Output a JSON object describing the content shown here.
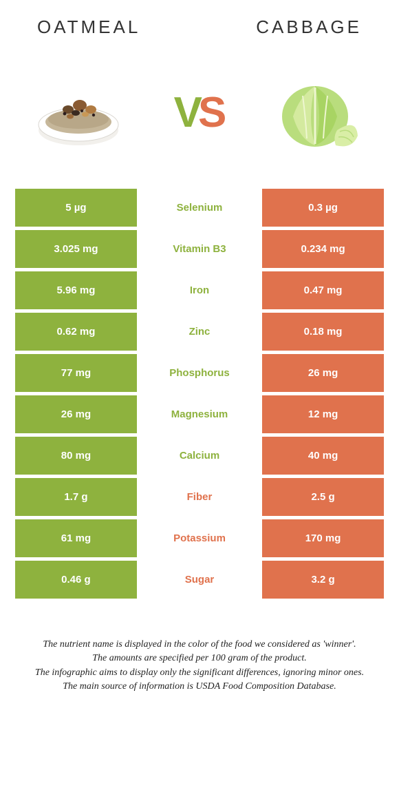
{
  "colors": {
    "left_col": "#8eb23e",
    "right_col": "#e0724d",
    "vs_v": "#8eb23e",
    "vs_s": "#e0724d",
    "title_text": "#333333"
  },
  "food_left": {
    "title": "OATMEAL"
  },
  "food_right": {
    "title": "CABBAGE"
  },
  "vs": {
    "v": "V",
    "s": "S"
  },
  "rows": [
    {
      "left": "5 µg",
      "label": "Selenium",
      "right": "0.3 µg",
      "winner": "left"
    },
    {
      "left": "3.025 mg",
      "label": "Vitamin B3",
      "right": "0.234 mg",
      "winner": "left"
    },
    {
      "left": "5.96 mg",
      "label": "Iron",
      "right": "0.47 mg",
      "winner": "left"
    },
    {
      "left": "0.62 mg",
      "label": "Zinc",
      "right": "0.18 mg",
      "winner": "left"
    },
    {
      "left": "77 mg",
      "label": "Phosphorus",
      "right": "26 mg",
      "winner": "left"
    },
    {
      "left": "26 mg",
      "label": "Magnesium",
      "right": "12 mg",
      "winner": "left"
    },
    {
      "left": "80 mg",
      "label": "Calcium",
      "right": "40 mg",
      "winner": "left"
    },
    {
      "left": "1.7 g",
      "label": "Fiber",
      "right": "2.5 g",
      "winner": "right"
    },
    {
      "left": "61 mg",
      "label": "Potassium",
      "right": "170 mg",
      "winner": "right"
    },
    {
      "left": "0.46 g",
      "label": "Sugar",
      "right": "3.2 g",
      "winner": "right"
    }
  ],
  "footnotes": [
    "The nutrient name is displayed in the color of the food we considered as 'winner'.",
    "The amounts are specified per 100 gram of the product.",
    "The infographic aims to display only the significant differences, ignoring minor ones.",
    "The main source of information is USDA Food Composition Database."
  ]
}
